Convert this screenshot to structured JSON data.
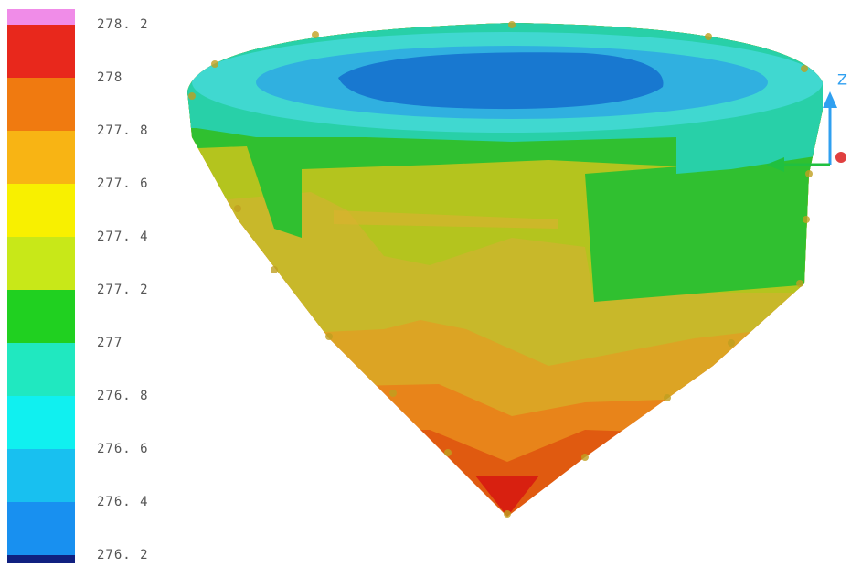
{
  "colorbar": {
    "labels": [
      "278. 2",
      "278",
      "277. 8",
      "277. 6",
      "277. 4",
      "277. 2",
      "277",
      "276. 8",
      "276. 6",
      "276. 4",
      "276. 2"
    ],
    "colors": [
      "#f08ce8",
      "#e8281c",
      "#f07a10",
      "#f8b414",
      "#f8f000",
      "#c8e818",
      "#20d020",
      "#20e8c0",
      "#10f0f0",
      "#18c0f0",
      "#1890f0",
      "#102080"
    ]
  },
  "axis_label": "Z"
}
